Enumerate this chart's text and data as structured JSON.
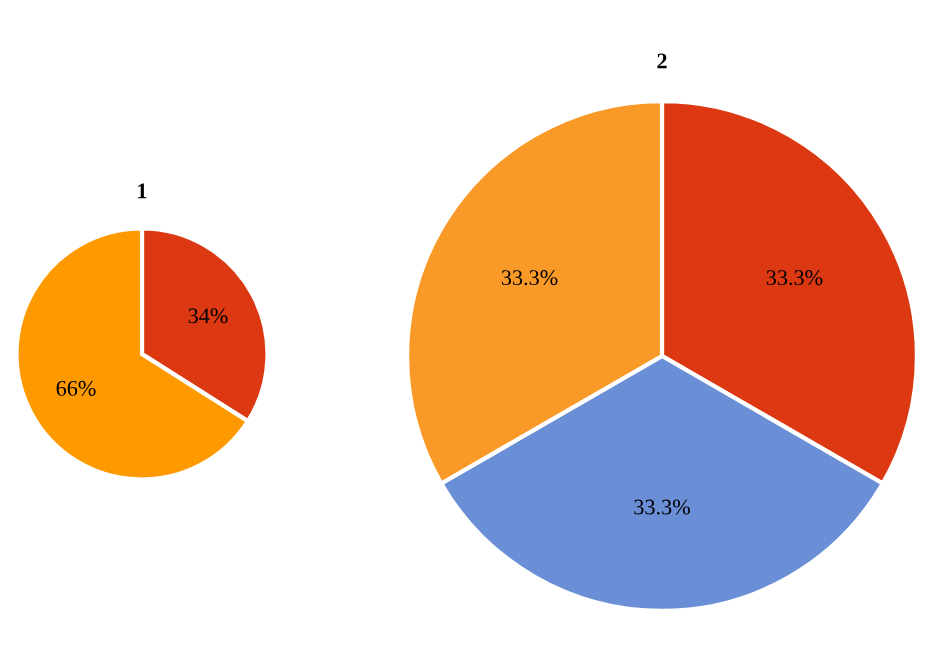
{
  "chart_data": [
    {
      "type": "pie",
      "title": "1",
      "categories": [
        null,
        null
      ],
      "values": [
        34,
        66
      ],
      "colors": [
        "#dc3912",
        "#ff9900"
      ],
      "value_labels": [
        "34%",
        "66%"
      ]
    },
    {
      "type": "pie",
      "title": "2",
      "categories": [
        null,
        null,
        null
      ],
      "values": [
        33.3,
        33.3,
        33.3
      ],
      "colors": [
        "#dc3912",
        "#6a8fd6",
        "#f99a28"
      ],
      "value_labels": [
        "33.3%",
        "33.3%",
        "33.3%"
      ]
    }
  ]
}
